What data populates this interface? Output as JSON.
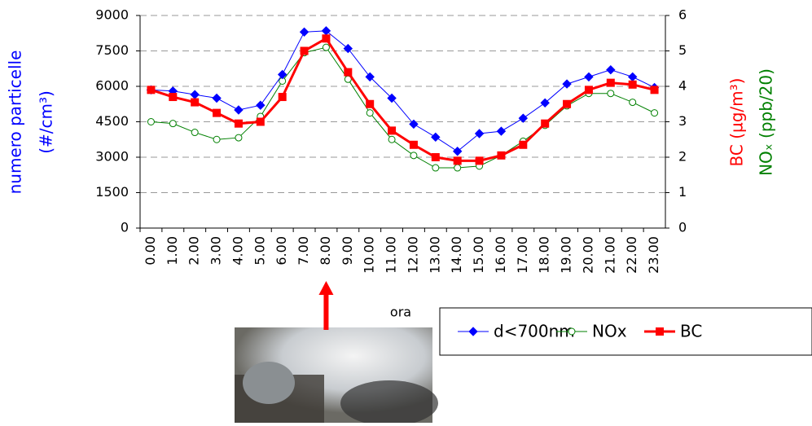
{
  "chart_data": {
    "type": "line",
    "x_label": "ora",
    "y_label": [
      "numero particelle",
      "(#/cm³)"
    ],
    "y2_label": [
      {
        "text": "BC (µg/m³)",
        "color": "#ff0000"
      },
      {
        "text": "NOₓ (ppb/20)",
        "color": "#008000"
      }
    ],
    "categories": [
      "0.00",
      "1.00",
      "2.00",
      "3.00",
      "4.00",
      "5.00",
      "6.00",
      "7.00",
      "8.00",
      "9.00",
      "10.00",
      "11.00",
      "12.00",
      "13.00",
      "14.00",
      "15.00",
      "16.00",
      "17.00",
      "18.00",
      "19.00",
      "20.00",
      "21.00",
      "22.00",
      "23.00"
    ],
    "series": [
      {
        "name": "d<700nm",
        "color": "#0000ff",
        "marker": "diamond",
        "width": 1,
        "values": [
          5850,
          5800,
          5650,
          5500,
          5000,
          5200,
          6500,
          8300,
          8350,
          7600,
          6400,
          5500,
          4400,
          3850,
          3250,
          4000,
          4100,
          4650,
          5300,
          6100,
          6400,
          6700,
          6400,
          5950
        ]
      },
      {
        "name": "NOx",
        "color": "#008000",
        "marker": "circle",
        "width": 1,
        "axis": "y2",
        "values": [
          3.0,
          2.95,
          2.7,
          2.5,
          2.55,
          3.15,
          4.15,
          4.95,
          5.1,
          4.2,
          3.25,
          2.5,
          2.05,
          1.7,
          1.7,
          1.75,
          2.05,
          2.45,
          2.9,
          3.45,
          3.8,
          3.8,
          3.55,
          3.25
        ]
      },
      {
        "name": "BC",
        "color": "#ff0000",
        "marker": "square",
        "width": 3,
        "axis": "y2",
        "values": [
          3.9,
          3.7,
          3.55,
          3.25,
          2.95,
          3.0,
          3.7,
          5.0,
          5.35,
          4.4,
          3.5,
          2.75,
          2.35,
          2.0,
          1.9,
          1.9,
          2.05,
          2.35,
          2.95,
          3.5,
          3.9,
          4.1,
          4.05,
          3.9
        ]
      }
    ],
    "ylim": [
      0,
      9000
    ],
    "yticks": [
      0,
      1500,
      3000,
      4500,
      6000,
      7500,
      9000
    ],
    "y2lim": [
      0,
      6
    ],
    "y2ticks": [
      0,
      1,
      2,
      3,
      4,
      5,
      6
    ],
    "grid": true,
    "arrow_at": "8.00"
  }
}
